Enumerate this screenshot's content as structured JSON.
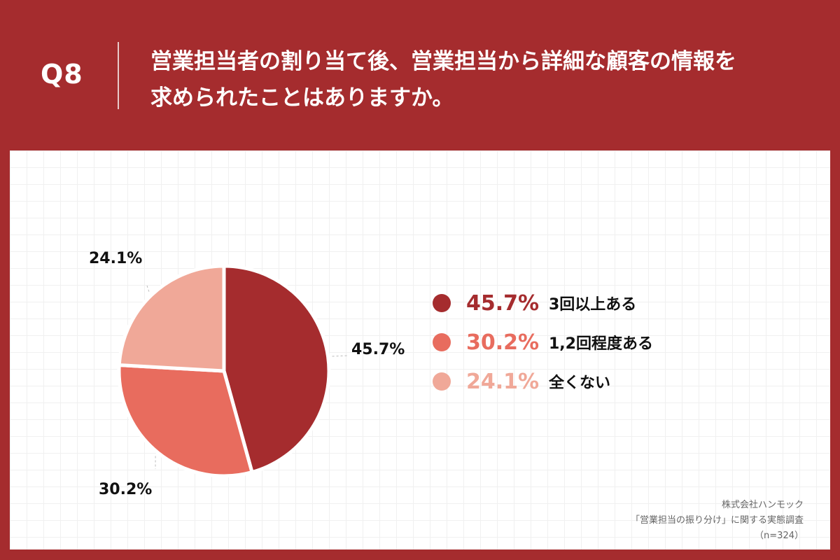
{
  "header": {
    "question_number": "Q8",
    "question_text": "営業担当者の割り当て後、営業担当から詳細な顧客の情報を\n求められたことはありますか。"
  },
  "chart_data": {
    "type": "pie",
    "categories": [
      "3回以上ある",
      "1,2回程度ある",
      "全くない"
    ],
    "values": [
      45.7,
      30.2,
      24.1
    ],
    "value_labels": [
      "45.7%",
      "30.2%",
      "24.1%"
    ],
    "colors": [
      "#A52C2E",
      "#E86C5E",
      "#F0A898"
    ],
    "start_angle": "12 o'clock",
    "direction": "clockwise",
    "legend_position": "right"
  },
  "legend": [
    {
      "percent": "45.7%",
      "label": "3回以上ある"
    },
    {
      "percent": "30.2%",
      "label": "1,2回程度ある"
    },
    {
      "percent": "24.1%",
      "label": "全くない"
    }
  ],
  "source": {
    "company": "株式会社ハンモック",
    "survey": "「営業担当の振り分け」に関する実態調査",
    "sample": "（n=324）"
  }
}
